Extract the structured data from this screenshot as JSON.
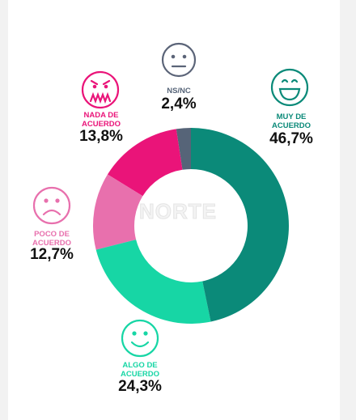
{
  "chart_data": {
    "type": "donut",
    "categories": [
      "MUY DE ACUERDO",
      "ALGO DE ACUERDO",
      "POCO DE ACUERDO",
      "NADA DE ACUERDO",
      "NS/NC"
    ],
    "values": [
      46.7,
      24.3,
      12.7,
      13.8,
      2.4
    ],
    "value_labels": [
      "46,7%",
      "24,3%",
      "12,7%",
      "13,8%",
      "2,4%"
    ],
    "colors": [
      "#0b8a79",
      "#17d6a5",
      "#e870ad",
      "#ea1479",
      "#566478"
    ],
    "watermark": "NORTE"
  }
}
